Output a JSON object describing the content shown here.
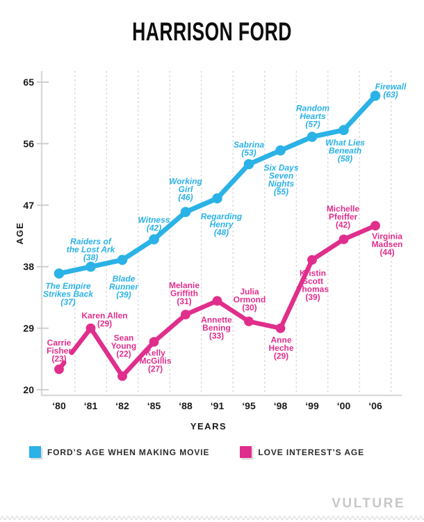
{
  "title": "HARRISON FORD",
  "branding": "VULTURE",
  "chart_data": {
    "type": "line",
    "title": "HARRISON FORD",
    "xlabel": "YEARS",
    "ylabel": "AGE",
    "x": [
      "‘80",
      "‘81",
      "‘82",
      "‘85",
      "‘88",
      "‘91",
      "‘95",
      "‘98",
      "‘99",
      "‘00",
      "‘06"
    ],
    "y_ticks": [
      65,
      56,
      47,
      38,
      29,
      20
    ],
    "ylim": [
      20,
      65
    ],
    "grid": {
      "vertical_dashed": true,
      "between_categories": true,
      "horizontal": false
    },
    "legend_position": "bottom-center",
    "series": [
      {
        "name": "FORD’S AGE WHEN MAKING MOVIE",
        "color": "#2bb2e6",
        "label_style": "italic",
        "points": [
          {
            "label": "The Empire Strikes Back",
            "value": 37,
            "lines": [
              "The Empire",
              "Strikes Back",
              "(37)"
            ],
            "dx": 13,
            "dy": 22
          },
          {
            "label": "Raiders of the Lost Ark",
            "value": 38,
            "lines": [
              "Raiders of",
              "the Lost Ark",
              "(38)"
            ],
            "dx": 0,
            "dy": -32
          },
          {
            "label": "Blade Runner",
            "value": 39,
            "lines": [
              "Blade",
              "Runner",
              "(39)"
            ],
            "dx": 2,
            "dy": 31
          },
          {
            "label": "Witness",
            "value": 42,
            "lines": [
              "Witness",
              "(42)"
            ],
            "dx": 0,
            "dy": -24
          },
          {
            "label": "Working Girl",
            "value": 46,
            "lines": [
              "Working",
              "Girl",
              "(46)"
            ],
            "dx": 0,
            "dy": -40
          },
          {
            "label": "Regarding Henry",
            "value": 48,
            "lines": [
              "Regarding",
              "Henry",
              "(48)"
            ],
            "dx": 6,
            "dy": 30
          },
          {
            "label": "Sabrina",
            "value": 53,
            "lines": [
              "Sabrina",
              "(53)"
            ],
            "dx": 0,
            "dy": -24
          },
          {
            "label": "Six Days Seven Nights",
            "value": 55,
            "lines": [
              "Six Days",
              "Seven",
              "Nights",
              "(55)"
            ],
            "dx": 1,
            "dy": 29
          },
          {
            "label": "Random Hearts",
            "value": 57,
            "lines": [
              "Random",
              "Hearts",
              "(57)"
            ],
            "dx": 1,
            "dy": -37
          },
          {
            "label": "What Lies Beneath",
            "value": 58,
            "lines": [
              "What Lies",
              "Beneath",
              "(58)"
            ],
            "dx": 2,
            "dy": 22
          },
          {
            "label": "Firewall",
            "value": 63,
            "lines": [
              "Firewall",
              "(63)"
            ],
            "dx": 22,
            "dy": -9
          }
        ]
      },
      {
        "name": "LOVE INTEREST’S AGE",
        "color": "#e02e8c",
        "label_style": "normal",
        "line_gap_first_segment": [
          0.16,
          0.4
        ],
        "points": [
          {
            "label": "Carrie Fisher",
            "value": 23,
            "lines": [
              "Carrie",
              "Fisher",
              "(23)"
            ],
            "dx": 0,
            "dy": -34
          },
          {
            "label": "Karen Allen",
            "value": 29,
            "lines": [
              "Karen Allen",
              "(29)"
            ],
            "dx": 20,
            "dy": -14
          },
          {
            "label": "Sean Young",
            "value": 22,
            "lines": [
              "Sean",
              "Young",
              "(22)"
            ],
            "dx": 2,
            "dy": -51
          },
          {
            "label": "Kelly McGillis",
            "value": 27,
            "lines": [
              "Kelly",
              "McGillis",
              "(27)"
            ],
            "dx": 2,
            "dy": 20
          },
          {
            "label": "Melanie Griffith",
            "value": 31,
            "lines": [
              "Melanie",
              "Griffith",
              "(31)"
            ],
            "dx": -2,
            "dy": -38
          },
          {
            "label": "Annette Bening",
            "value": 33,
            "lines": [
              "Annette",
              "Bening",
              "(33)"
            ],
            "dx": -1,
            "dy": 31
          },
          {
            "label": "Julia Ormond",
            "value": 30,
            "lines": [
              "Julia",
              "Ormond",
              "(30)"
            ],
            "dx": 1,
            "dy": -39
          },
          {
            "label": "Anne Heche",
            "value": 29,
            "lines": [
              "Anne",
              "Heche",
              "(29)"
            ],
            "dx": 1,
            "dy": 21
          },
          {
            "label": "Kristin Scott Thomas",
            "value": 39,
            "lines": [
              "Kristin",
              "Scott",
              "Thomas",
              "(39)"
            ],
            "dx": 1,
            "dy": 23
          },
          {
            "label": "Michelle Pfeiffer",
            "value": 42,
            "lines": [
              "Michelle",
              "Pfeiffer",
              "(42)"
            ],
            "dx": -1,
            "dy": -40
          },
          {
            "label": "Virginia Madsen",
            "value": 44,
            "lines": [
              "Virginia",
              "Madsen",
              "(44)"
            ],
            "dx": 17,
            "dy": 19
          }
        ]
      }
    ]
  },
  "legend": {
    "items": [
      {
        "label": "FORD’S AGE WHEN MAKING MOVIE",
        "color": "#2bb2e6"
      },
      {
        "label": "LOVE INTEREST’S AGE",
        "color": "#e02e8c"
      }
    ]
  },
  "colors": {
    "ford_blue": "#2bb2e6",
    "love_pink": "#e02e8c",
    "axis_gray": "#dadada",
    "grid_gray": "#cfcfcf",
    "text_black": "#191919",
    "branding_gray": "#c7c7c7"
  }
}
